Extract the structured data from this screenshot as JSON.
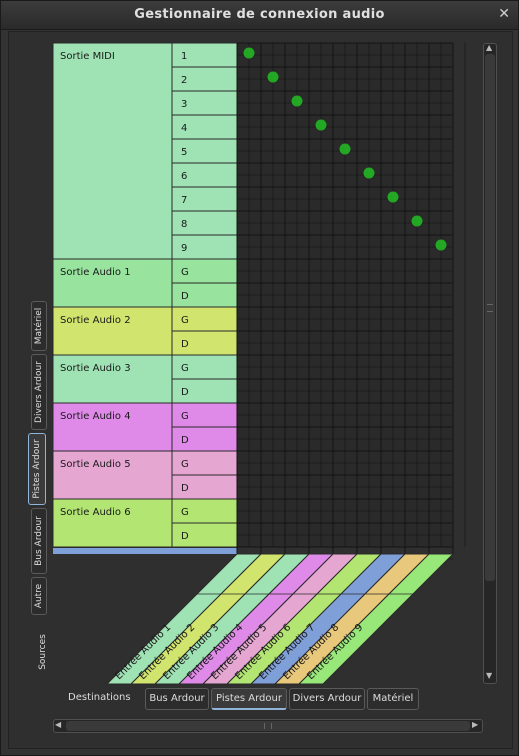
{
  "window": {
    "title": "Gestionnaire de connexion audio",
    "close_glyph": "✕"
  },
  "sources": {
    "label": "Sources",
    "tabs": [
      {
        "label": "Matériel",
        "active": false
      },
      {
        "label": "Divers Ardour",
        "active": false
      },
      {
        "label": "Pistes Ardour",
        "active": true
      },
      {
        "label": "Bus Ardour",
        "active": false
      },
      {
        "label": "Autre",
        "active": false
      }
    ],
    "groups": [
      {
        "name": "Sortie MIDI",
        "color": "#9fe3b4",
        "ports": [
          "1",
          "2",
          "3",
          "4",
          "5",
          "6",
          "7",
          "8",
          "9"
        ]
      },
      {
        "name": "Sortie Audio 1",
        "color": "#98e39e",
        "ports": [
          "G",
          "D"
        ]
      },
      {
        "name": "Sortie Audio 2",
        "color": "#d0e46e",
        "ports": [
          "G",
          "D"
        ]
      },
      {
        "name": "Sortie Audio 3",
        "color": "#9fe3b4",
        "ports": [
          "G",
          "D"
        ]
      },
      {
        "name": "Sortie Audio 4",
        "color": "#df8ae8",
        "ports": [
          "G",
          "D"
        ]
      },
      {
        "name": "Sortie Audio 5",
        "color": "#e6a6d2",
        "ports": [
          "G",
          "D"
        ]
      },
      {
        "name": "Sortie Audio 6",
        "color": "#b3e572",
        "ports": [
          "G",
          "D"
        ]
      }
    ],
    "partial_group_color": "#7f9fd9"
  },
  "destinations": {
    "label": "Destinations",
    "tabs": [
      {
        "label": "Bus Ardour",
        "active": false
      },
      {
        "label": "Pistes Ardour",
        "active": true
      },
      {
        "label": "Divers Ardour",
        "active": false
      },
      {
        "label": "Matériel",
        "active": false
      }
    ],
    "columns": [
      {
        "name": "Entrée Audio 1",
        "color": "#9fe3b4"
      },
      {
        "name": "Entrée Audio 2",
        "color": "#d0e46e"
      },
      {
        "name": "Entrée Audio 3",
        "color": "#9fe3b4"
      },
      {
        "name": "Entrée Audio 4",
        "color": "#df8ae8"
      },
      {
        "name": "Entrée Audio 5",
        "color": "#e6a6d2"
      },
      {
        "name": "Entrée Audio 6",
        "color": "#b3e572"
      },
      {
        "name": "Entrée Audio 7",
        "color": "#7f9fd9"
      },
      {
        "name": "Entrée Audio 8",
        "color": "#e8c87a"
      },
      {
        "name": "Entrée Audio 9",
        "color": "#98e879"
      }
    ]
  },
  "connections": [
    [
      0,
      0
    ],
    [
      1,
      1
    ],
    [
      2,
      2
    ],
    [
      3,
      3
    ],
    [
      4,
      4
    ],
    [
      5,
      5
    ],
    [
      6,
      6
    ],
    [
      7,
      7
    ],
    [
      8,
      8
    ]
  ],
  "colors": {
    "grid_bg": "#2a2a2a",
    "grid_line": "#141414",
    "dot": "#22a822"
  }
}
